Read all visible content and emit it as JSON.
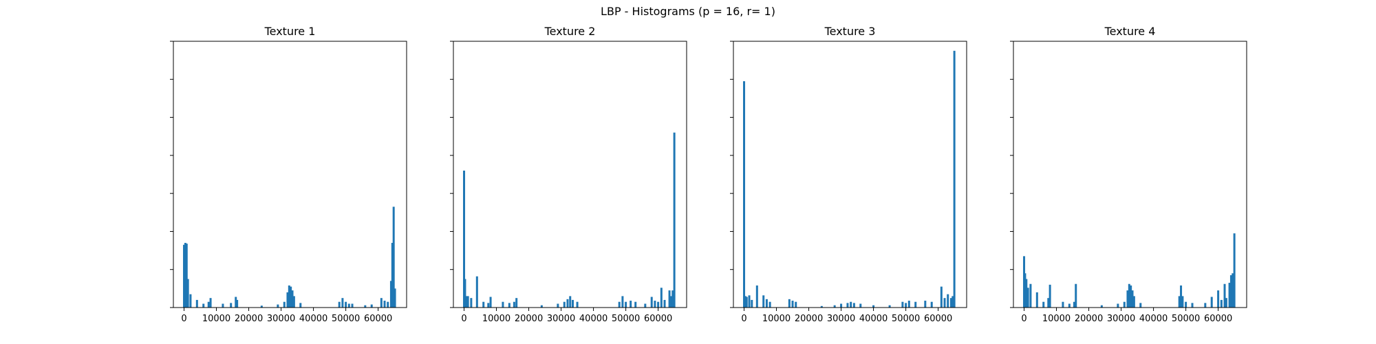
{
  "figure": {
    "suptitle": "LBP - Histograms (p = 16, r= 1)"
  },
  "colors": {
    "bar": "#1f77b4",
    "axes": "#000000",
    "background": "#ffffff"
  },
  "chart_data": [
    {
      "type": "bar",
      "title": "Texture 1",
      "xlabel": "",
      "ylabel": "",
      "xlim": [
        -3300,
        68800
      ],
      "ylim": [
        0,
        0.07
      ],
      "xticks": [
        0,
        10000,
        20000,
        30000,
        40000,
        50000,
        60000
      ],
      "xtick_labels": [
        "0",
        "10000",
        "20000",
        "30000",
        "40000",
        "50000",
        "60000"
      ],
      "yticks": [
        0,
        0.01,
        0.02,
        0.03,
        0.04,
        0.05,
        0.06,
        0.07
      ],
      "ytick_labels": [
        "",
        "",
        "",
        "",
        "",
        "",
        "",
        ""
      ],
      "grid": false,
      "x": [
        0,
        400,
        800,
        1200,
        2000,
        4000,
        6000,
        7600,
        8200,
        12000,
        14500,
        16000,
        16400,
        24000,
        29000,
        31000,
        32000,
        32500,
        33000,
        33500,
        34000,
        36000,
        48000,
        49000,
        50000,
        51000,
        52000,
        56000,
        58000,
        61000,
        62000,
        63000,
        64000,
        64400,
        64800,
        65200
      ],
      "values": [
        0.0165,
        0.017,
        0.0168,
        0.0075,
        0.0035,
        0.002,
        0.001,
        0.0015,
        0.0025,
        0.001,
        0.0012,
        0.0028,
        0.002,
        0.0005,
        0.0008,
        0.0015,
        0.004,
        0.0058,
        0.0055,
        0.0045,
        0.003,
        0.0012,
        0.0015,
        0.0025,
        0.0015,
        0.001,
        0.001,
        0.0006,
        0.0008,
        0.0025,
        0.0018,
        0.0015,
        0.007,
        0.017,
        0.0265,
        0.005
      ]
    },
    {
      "type": "bar",
      "title": "Texture 2",
      "xlabel": "",
      "ylabel": "",
      "xlim": [
        -3300,
        68800
      ],
      "ylim": [
        0,
        0.07
      ],
      "xticks": [
        0,
        10000,
        20000,
        30000,
        40000,
        50000,
        60000
      ],
      "xtick_labels": [
        "0",
        "10000",
        "20000",
        "30000",
        "40000",
        "50000",
        "60000"
      ],
      "yticks": [
        0,
        0.01,
        0.02,
        0.03,
        0.04,
        0.05,
        0.06,
        0.07
      ],
      "ytick_labels": [
        "",
        "",
        "",
        "",
        "",
        "",
        "",
        ""
      ],
      "grid": false,
      "x": [
        0,
        300,
        700,
        1200,
        2200,
        4000,
        6000,
        7500,
        8200,
        12000,
        14000,
        15500,
        16200,
        24000,
        29000,
        31000,
        32000,
        32800,
        33600,
        35000,
        48000,
        49000,
        50000,
        51500,
        53000,
        56000,
        58000,
        59000,
        60000,
        61000,
        62000,
        63500,
        64000,
        64500,
        65000
      ],
      "values": [
        0.036,
        0.0075,
        0.003,
        0.003,
        0.0025,
        0.0082,
        0.0015,
        0.0012,
        0.0028,
        0.0015,
        0.0012,
        0.0015,
        0.0025,
        0.0006,
        0.001,
        0.0015,
        0.0022,
        0.003,
        0.002,
        0.0015,
        0.0015,
        0.003,
        0.0015,
        0.0018,
        0.0015,
        0.001,
        0.0028,
        0.0018,
        0.0015,
        0.0052,
        0.002,
        0.0045,
        0.003,
        0.0045,
        0.046
      ]
    },
    {
      "type": "bar",
      "title": "Texture 3",
      "xlabel": "",
      "ylabel": "",
      "xlim": [
        -3300,
        68800
      ],
      "ylim": [
        0,
        0.07
      ],
      "xticks": [
        0,
        10000,
        20000,
        30000,
        40000,
        50000,
        60000
      ],
      "xtick_labels": [
        "0",
        "10000",
        "20000",
        "30000",
        "40000",
        "50000",
        "60000"
      ],
      "yticks": [
        0,
        0.01,
        0.02,
        0.03,
        0.04,
        0.05,
        0.06,
        0.07
      ],
      "ytick_labels": [
        "",
        "",
        "",
        "",
        "",
        "",
        "",
        ""
      ],
      "grid": false,
      "x": [
        0,
        400,
        800,
        1600,
        2400,
        4000,
        6000,
        7000,
        8000,
        14000,
        15000,
        16000,
        24000,
        28000,
        30000,
        32000,
        33000,
        34000,
        36000,
        40000,
        45000,
        49000,
        50000,
        51000,
        53000,
        56000,
        58000,
        61000,
        62000,
        63000,
        64000,
        64500,
        65000
      ],
      "values": [
        0.0595,
        0.003,
        0.0028,
        0.0032,
        0.002,
        0.0058,
        0.0032,
        0.0022,
        0.0015,
        0.0022,
        0.0018,
        0.0015,
        0.0004,
        0.0006,
        0.001,
        0.0012,
        0.0015,
        0.0012,
        0.001,
        0.0006,
        0.0006,
        0.0015,
        0.0012,
        0.0018,
        0.0015,
        0.0018,
        0.0015,
        0.0055,
        0.0025,
        0.0035,
        0.0025,
        0.003,
        0.0675
      ]
    },
    {
      "type": "bar",
      "title": "Texture 4",
      "xlabel": "",
      "ylabel": "",
      "xlim": [
        -3300,
        68800
      ],
      "ylim": [
        0,
        0.07
      ],
      "xticks": [
        0,
        10000,
        20000,
        30000,
        40000,
        50000,
        60000
      ],
      "xtick_labels": [
        "0",
        "10000",
        "20000",
        "30000",
        "40000",
        "50000",
        "60000"
      ],
      "yticks": [
        0,
        0.01,
        0.02,
        0.03,
        0.04,
        0.05,
        0.06,
        0.07
      ],
      "ytick_labels": [
        "",
        "",
        "",
        "",
        "",
        "",
        "",
        ""
      ],
      "grid": false,
      "x": [
        0,
        300,
        700,
        1200,
        2000,
        4000,
        6000,
        7500,
        8000,
        12000,
        14000,
        15500,
        16000,
        24000,
        29000,
        31000,
        32000,
        32500,
        33000,
        33500,
        34000,
        36000,
        48000,
        48500,
        49000,
        50000,
        52000,
        56000,
        58000,
        60000,
        61000,
        62000,
        62500,
        63500,
        64000,
        64500,
        65000
      ],
      "values": [
        0.0135,
        0.009,
        0.0075,
        0.0052,
        0.0062,
        0.004,
        0.0015,
        0.0025,
        0.006,
        0.0015,
        0.001,
        0.0015,
        0.0062,
        0.0006,
        0.001,
        0.0015,
        0.0045,
        0.0062,
        0.0058,
        0.0045,
        0.003,
        0.0012,
        0.003,
        0.0058,
        0.003,
        0.0015,
        0.0012,
        0.0012,
        0.0028,
        0.0045,
        0.002,
        0.0062,
        0.0025,
        0.0065,
        0.0085,
        0.009,
        0.0195
      ]
    }
  ]
}
